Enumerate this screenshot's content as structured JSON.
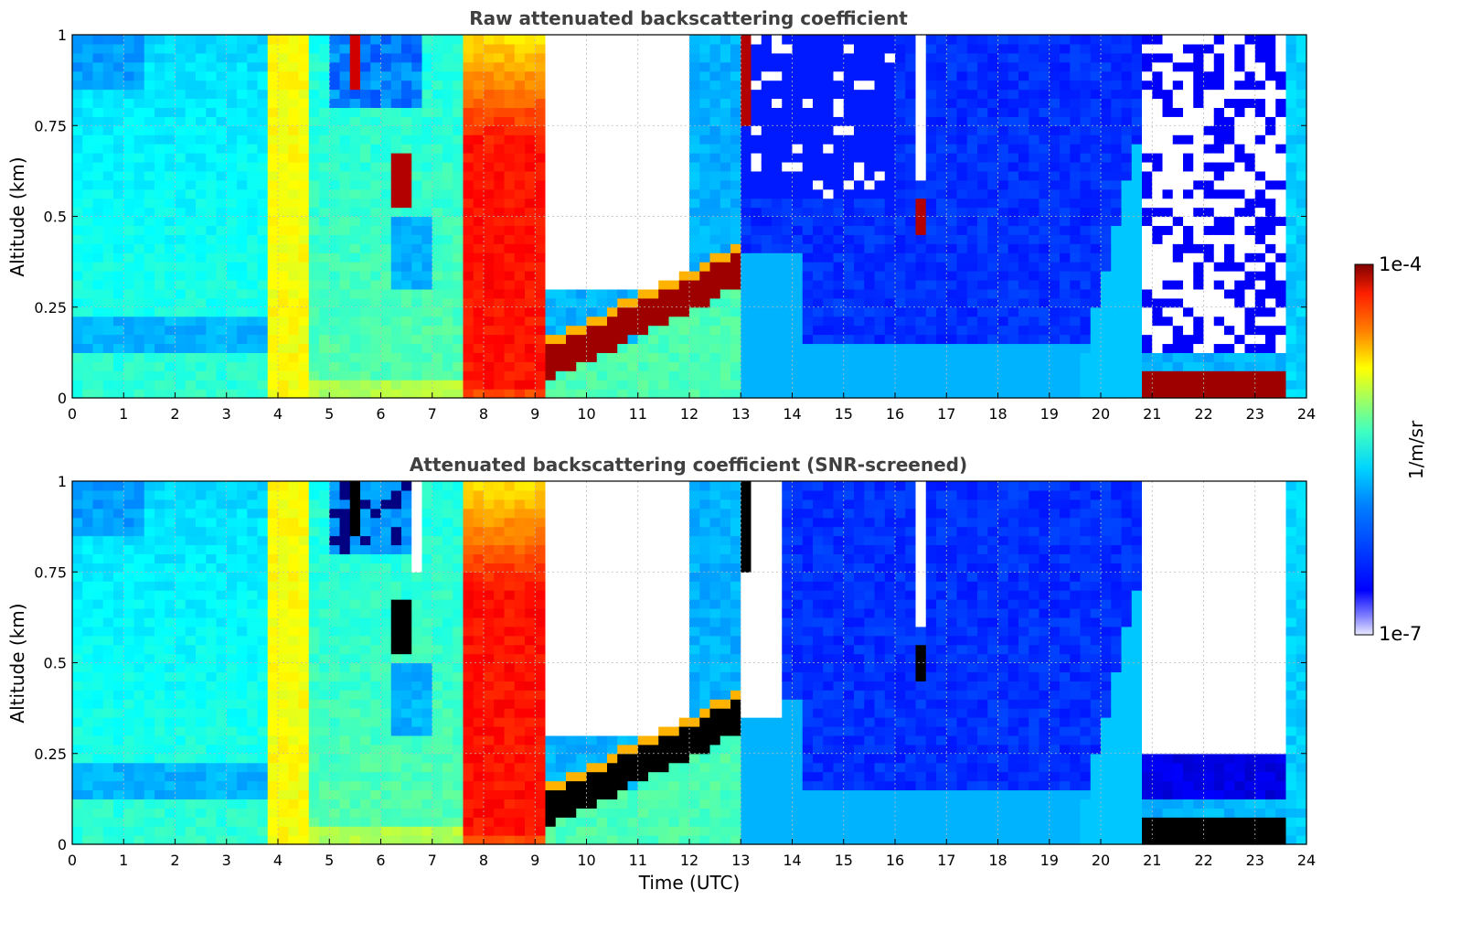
{
  "chart_data": [
    {
      "type": "heatmap",
      "title": "Raw attenuated backscattering coefficient",
      "xlabel": "",
      "ylabel": "Altitude (km)",
      "xlim": [
        0,
        24
      ],
      "ylim": [
        0,
        1
      ],
      "xticks": [
        "0",
        "1",
        "2",
        "3",
        "4",
        "5",
        "6",
        "7",
        "8",
        "9",
        "10",
        "11",
        "12",
        "13",
        "14",
        "15",
        "16",
        "17",
        "18",
        "19",
        "20",
        "21",
        "22",
        "23",
        "24"
      ],
      "yticks": [
        "0",
        "0.25",
        "0.5",
        "0.75",
        "1"
      ],
      "grid": true,
      "colorscale": "jet (log)",
      "clim": [
        "1e-7",
        "1e-4"
      ],
      "regions_approx": [
        {
          "t": [
            0,
            3.8
          ],
          "alt": [
            0,
            1
          ],
          "level": "~1e-6 (cyan/blue)"
        },
        {
          "t": [
            4,
            4.6
          ],
          "alt": [
            0,
            1
          ],
          "level": "~1e-5 (yellow)"
        },
        {
          "t": [
            7.7,
            9.2
          ],
          "alt": [
            0,
            1
          ],
          "level": "~5e-5 (red)"
        },
        {
          "t": [
            9.2,
            12.9
          ],
          "alt": [
            0.05,
            0.35
          ],
          "level": "~1e-4 (dark red cloud layer)"
        },
        {
          "t": [
            9.5,
            11.5
          ],
          "alt": [
            0.3,
            1
          ],
          "level": "below noise (white)"
        },
        {
          "t": [
            14,
            21
          ],
          "alt": [
            0,
            1
          ],
          "level": "~3e-7 (blue)"
        },
        {
          "t": [
            16.3,
            16.6
          ],
          "alt": [
            0.45,
            0.55
          ],
          "level": "~1e-4 (dark red)"
        },
        {
          "t": [
            20.8,
            23.5
          ],
          "alt": [
            0.01,
            0.08
          ],
          "level": "~1e-4 (dark red cloud)"
        },
        {
          "t": [
            21,
            23.2
          ],
          "alt": [
            0.13,
            1
          ],
          "level": "below noise (white)"
        }
      ]
    },
    {
      "type": "heatmap",
      "title": "Attenuated backscattering coefficient (SNR-screened)",
      "xlabel": "Time (UTC)",
      "ylabel": "Altitude (km)",
      "xlim": [
        0,
        24
      ],
      "ylim": [
        0,
        1
      ],
      "xticks": [
        "0",
        "1",
        "2",
        "3",
        "4",
        "5",
        "6",
        "7",
        "8",
        "9",
        "10",
        "11",
        "12",
        "13",
        "14",
        "15",
        "16",
        "17",
        "18",
        "19",
        "20",
        "21",
        "22",
        "23",
        "24"
      ],
      "yticks": [
        "0",
        "0.25",
        "0.5",
        "0.75",
        "1"
      ],
      "grid": true,
      "colorscale": "jet (log)",
      "clim": [
        "1e-7",
        "1e-4"
      ],
      "regions_approx": [
        {
          "t": [
            0,
            3.8
          ],
          "alt": [
            0,
            1
          ],
          "level": "~1e-6 (cyan/blue)"
        },
        {
          "t": [
            7.7,
            9.2
          ],
          "alt": [
            0,
            1
          ],
          "level": "~5e-5 (red)"
        },
        {
          "t": [
            9.2,
            12.9
          ],
          "alt": [
            0.05,
            0.35
          ],
          "level": "saturated (black)"
        },
        {
          "t": [
            9.5,
            13.8
          ],
          "alt": [
            0.3,
            1
          ],
          "level": "screened out (white)"
        },
        {
          "t": [
            20.8,
            23.5
          ],
          "alt": [
            0.01,
            0.08
          ],
          "level": "saturated (black)"
        },
        {
          "t": [
            21,
            23.2
          ],
          "alt": [
            0.25,
            1
          ],
          "level": "screened out (white)"
        }
      ]
    }
  ],
  "colorbar": {
    "label": "1/m/sr",
    "max_label": "1e-4",
    "min_label": "1e-7"
  }
}
